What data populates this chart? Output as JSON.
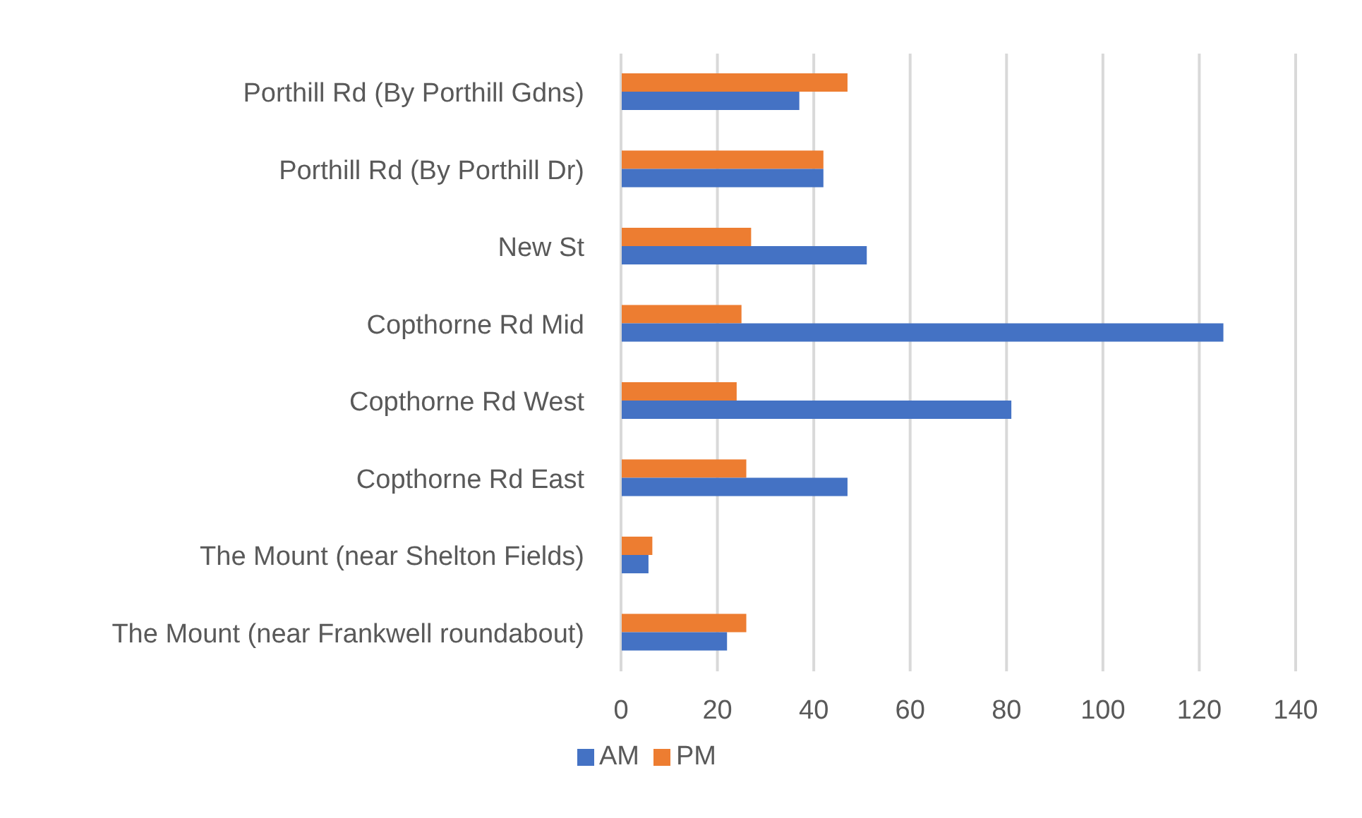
{
  "chart_data": {
    "type": "bar",
    "orientation": "horizontal",
    "categories": [
      "Porthill Rd (By Porthill Gdns)",
      "Porthill Rd (By Porthill Dr)",
      "New St",
      "Copthorne Rd Mid",
      "Copthorne Rd West",
      "Copthorne Rd East",
      "The Mount (near Shelton Fields)",
      "The Mount (near Frankwell roundabout)"
    ],
    "series": [
      {
        "name": "PM",
        "color": "#ed7d31",
        "values": [
          47,
          42,
          27,
          25,
          24,
          26,
          6.5,
          26
        ]
      },
      {
        "name": "AM",
        "color": "#4472c4",
        "values": [
          37,
          42,
          51,
          125,
          81,
          47,
          5.7,
          22
        ]
      }
    ],
    "xlim": [
      0,
      140
    ],
    "xticks": [
      0,
      20,
      40,
      60,
      80,
      100,
      120,
      140
    ],
    "grid": "x",
    "legend": "bottom"
  }
}
